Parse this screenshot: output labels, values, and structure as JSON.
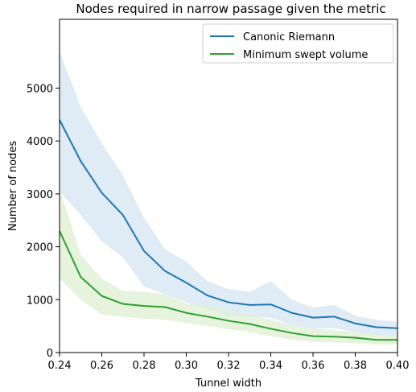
{
  "chart_data": {
    "type": "line",
    "title": "Nodes required in narrow passage given the metric",
    "xlabel": "Tunnel width",
    "ylabel": "Number of nodes",
    "xlim": [
      0.24,
      0.4
    ],
    "ylim": [
      0,
      6300
    ],
    "xticks": [
      "0.24",
      "0.26",
      "0.28",
      "0.30",
      "0.32",
      "0.34",
      "0.36",
      "0.38",
      "0.40"
    ],
    "yticks": [
      "0",
      "1000",
      "2000",
      "3000",
      "4000",
      "5000"
    ],
    "grid": false,
    "legend_position": "top-right",
    "x": [
      0.24,
      0.25,
      0.26,
      0.27,
      0.28,
      0.29,
      0.3,
      0.31,
      0.32,
      0.33,
      0.34,
      0.35,
      0.36,
      0.37,
      0.38,
      0.39,
      0.4
    ],
    "series": [
      {
        "name": "Canonic Riemann",
        "color": "#1f77b4",
        "band_color": "#d6e6f2",
        "values": [
          4400,
          3620,
          3020,
          2600,
          1920,
          1540,
          1320,
          1080,
          950,
          900,
          910,
          750,
          660,
          680,
          550,
          480,
          460
        ],
        "upper": [
          5700,
          4650,
          3950,
          3350,
          2550,
          1950,
          1720,
          1350,
          1200,
          1150,
          1350,
          1000,
          850,
          900,
          700,
          620,
          580
        ],
        "lower": [
          3050,
          2600,
          2100,
          1800,
          1250,
          1100,
          950,
          820,
          700,
          680,
          660,
          520,
          450,
          460,
          380,
          330,
          320
        ]
      },
      {
        "name": "Minimum swept volume",
        "color": "#2ca02c",
        "band_color": "#ddf0d2",
        "values": [
          2300,
          1430,
          1070,
          920,
          880,
          860,
          750,
          680,
          600,
          540,
          450,
          370,
          310,
          300,
          280,
          240,
          240
        ],
        "upper": [
          3100,
          1850,
          1400,
          1170,
          1150,
          1100,
          930,
          880,
          780,
          720,
          620,
          520,
          450,
          420,
          390,
          340,
          330
        ],
        "lower": [
          1400,
          1000,
          720,
          680,
          640,
          620,
          560,
          500,
          440,
          390,
          310,
          240,
          200,
          190,
          180,
          150,
          150
        ]
      }
    ]
  }
}
